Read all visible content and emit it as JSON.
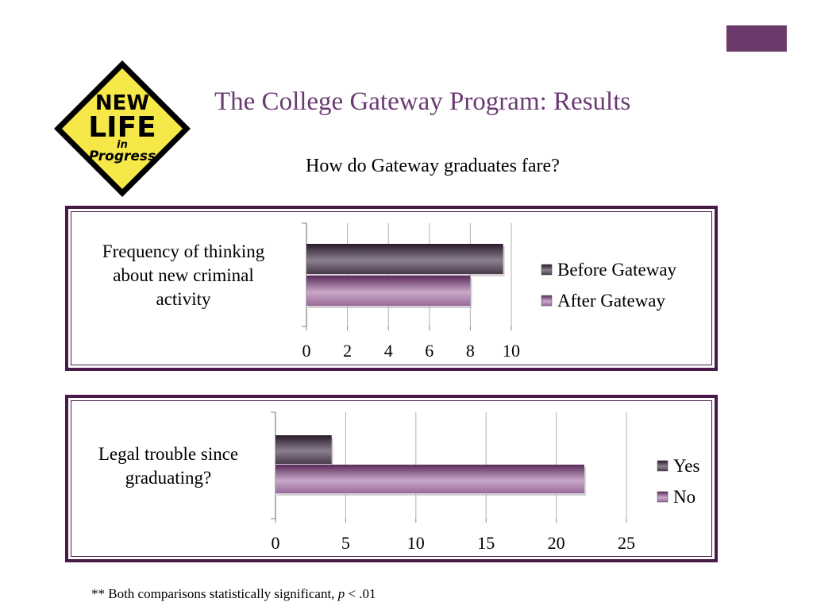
{
  "slide": {
    "title": "The College Gateway Program: Results",
    "subtitle": "How do Gateway graduates fare?",
    "footnote_prefix": "** Both comparisons statistically significant, ",
    "footnote_p": "p",
    "footnote_suffix": " < .01",
    "accent_color": "#6b3a73"
  },
  "logo": {
    "line1": "NEW",
    "line2": "LIFE",
    "line3": "in",
    "line4": "Progress",
    "color": "#f7e84a"
  },
  "chart_data": [
    {
      "type": "bar",
      "orientation": "horizontal",
      "categories": [
        "Frequency of  thinking about new criminal activity"
      ],
      "category_lines": [
        "Frequency of  thinking",
        "about new criminal",
        "activity"
      ],
      "series": [
        {
          "name": "Before Gateway",
          "values": [
            9.6
          ],
          "color": "#3a2a3a"
        },
        {
          "name": "After Gateway",
          "values": [
            8.0
          ],
          "color": "#7a4a7a"
        }
      ],
      "xlim": [
        0,
        10
      ],
      "xticks": [
        "0",
        "2",
        "4",
        "6",
        "8",
        "10"
      ],
      "grid": true,
      "legend": "right"
    },
    {
      "type": "bar",
      "orientation": "horizontal",
      "categories": [
        "Legal trouble since graduating?"
      ],
      "category_lines": [
        "Legal trouble since",
        "graduating?"
      ],
      "series": [
        {
          "name": "Yes",
          "values": [
            4
          ],
          "color": "#3a2a3a"
        },
        {
          "name": "No",
          "values": [
            22
          ],
          "color": "#7a4a7a"
        }
      ],
      "xlim": [
        0,
        25
      ],
      "xticks": [
        "0",
        "5",
        "10",
        "15",
        "20",
        "25"
      ],
      "grid": true,
      "legend": "right"
    }
  ]
}
